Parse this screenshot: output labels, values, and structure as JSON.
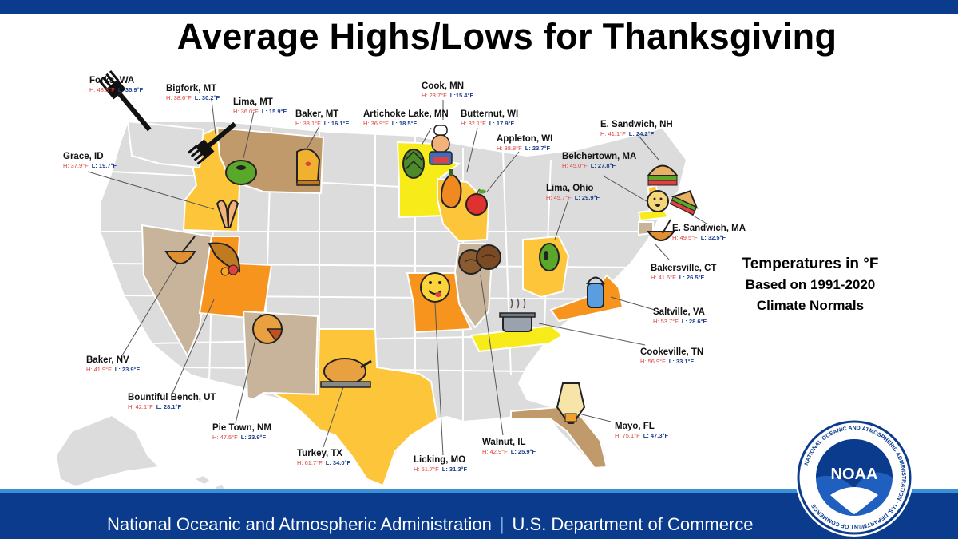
{
  "title": "Average Highs/Lows for Thanksgiving",
  "legend": {
    "line1": "Temperatures in °F",
    "line2": "Based on 1991-2020",
    "line3": "Climate Normals"
  },
  "footer": {
    "agency": "National Oceanic and Atmospheric Administration",
    "separator": "|",
    "department": "U.S. Department of Commerce"
  },
  "logo": {
    "name": "NOAA",
    "ring_text": "NATIONAL OCEANIC AND ATMOSPHERIC ADMINISTRATION · U.S. DEPARTMENT OF COMMERCE"
  },
  "colors": {
    "header_bar": "#0b3b8c",
    "footer_bar": "#0b3b8c",
    "footer_accent": "#3a8fd6",
    "high_temp": "#e0433a",
    "low_temp": "#1c3f8f",
    "state_base": "#dcdcdc",
    "tan": "#c19a6b",
    "yellow": "#f7ec1a",
    "light_orange": "#fdc53a",
    "orange": "#f7941d",
    "gray_tan": "#c8b49a"
  },
  "cities": [
    {
      "name": "Forks, WA",
      "high": "H: 48.3°F",
      "low": "L: 35.9°F",
      "icon": "fork-icon"
    },
    {
      "name": "Bigfork, MT",
      "high": "H: 38.6°F",
      "low": "L: 30.2°F",
      "icon": "fork-icon"
    },
    {
      "name": "Lima, MT",
      "high": "H: 36.0°F",
      "low": "L: 15.9°F",
      "icon": "lima-bean-icon"
    },
    {
      "name": "Baker, MT",
      "high": "H: 38.1°F",
      "low": "L: 16.1°F",
      "icon": "oven-mitt-icon"
    },
    {
      "name": "Cook, MN",
      "high": "H: 28.7°F",
      "low": "L:15.4°F",
      "icon": "chef-icon"
    },
    {
      "name": "Artichoke Lake, MN",
      "high": "H: 36.9°F",
      "low": "L: 18.5°F",
      "icon": "artichoke-icon"
    },
    {
      "name": "Butternut, WI",
      "high": "H: 32.1°F",
      "low": "L: 17.9°F",
      "icon": "squash-icon"
    },
    {
      "name": "Appleton, WI",
      "high": "H: 38.8°F",
      "low": "L: 23.7°F",
      "icon": "apple-icon"
    },
    {
      "name": "E. Sandwich, NH",
      "high": "H: 41.1°F",
      "low": "L: 24.2°F",
      "icon": "sandwich-icon"
    },
    {
      "name": "Belchertown, MA",
      "high": "H: 45.0°F",
      "low": "L: 27.8°F",
      "icon": "burp-face-icon"
    },
    {
      "name": "Grace, ID",
      "high": "H: 37.9°F",
      "low": "L: 19.7°F",
      "icon": "praying-hands-icon"
    },
    {
      "name": "Lima, Ohio",
      "high": "H: 45.7°F",
      "low": "L: 29.9°F",
      "icon": "lima-bean-icon"
    },
    {
      "name": "E. Sandwich, MA",
      "high": "H: 49.5°F",
      "low": "L: 32.5°F",
      "icon": "sandwich-icon"
    },
    {
      "name": "Bakersville, CT",
      "high": "H: 41.5°F",
      "low": "L: 26.5°F",
      "icon": "mixing-bowl-icon"
    },
    {
      "name": "Saltville, VA",
      "high": "H: 53.7°F",
      "low": "L: 28.6°F",
      "icon": "salt-shaker-icon"
    },
    {
      "name": "Cookeville, TN",
      "high": "H: 56.9°F",
      "low": "L: 33.1°F",
      "icon": "cooking-pot-icon"
    },
    {
      "name": "Baker, NV",
      "high": "H: 41.9°F",
      "low": "L: 23.9°F",
      "icon": "whisk-bowl-icon"
    },
    {
      "name": "Bountiful Bench, UT",
      "high": "H: 42.1°F",
      "low": "L: 28.1°F",
      "icon": "cornucopia-icon"
    },
    {
      "name": "Pie Town, NM",
      "high": "H: 47.5°F",
      "low": "L: 23.9°F",
      "icon": "pie-icon"
    },
    {
      "name": "Turkey, TX",
      "high": "H: 61.7°F",
      "low": "L: 34.0°F",
      "icon": "turkey-icon"
    },
    {
      "name": "Licking, MO",
      "high": "H: 51.7°F",
      "low": "L: 31.3°F",
      "icon": "licking-face-icon"
    },
    {
      "name": "Walnut, IL",
      "high": "H: 42.9°F",
      "low": "L: 25.9°F",
      "icon": "walnut-icon"
    },
    {
      "name": "Mayo, FL",
      "high": "H: 75.1°F",
      "low": "L: 47.3°F",
      "icon": "mayo-jar-icon"
    }
  ]
}
